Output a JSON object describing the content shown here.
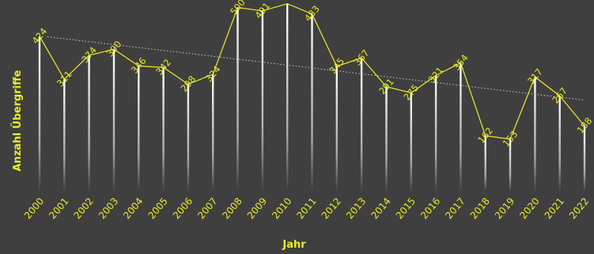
{
  "chart_data": {
    "type": "line",
    "xlabel": "Jahr",
    "ylabel": "Anzahl Übergriffe",
    "categories": [
      "2000",
      "2001",
      "2002",
      "2003",
      "2004",
      "2005",
      "2006",
      "2007",
      "2008",
      "2009",
      "2010",
      "2011",
      "2012",
      "2013",
      "2014",
      "2015",
      "2016",
      "2017",
      "2018",
      "2019",
      "2020",
      "2021",
      "2022"
    ],
    "series": [
      {
        "values": [
          424,
          311,
          374,
          390,
          346,
          342,
          298,
          324,
          500,
          491,
          510,
          483,
          345,
          367,
          291,
          275,
          321,
          354,
          162,
          153,
          317,
          267,
          188
        ],
        "labels": [
          "424",
          "311",
          "374",
          "390",
          "346",
          "342",
          "298",
          "324",
          "500",
          "491",
          "",
          "483",
          "345",
          "367",
          "291",
          "275",
          "321",
          "354",
          "162",
          "153",
          "317",
          "267",
          "188"
        ]
      }
    ],
    "trendline": {
      "style": "dotted",
      "color": "#cfcfcf"
    },
    "ylim": [
      0,
      520
    ],
    "grid": false,
    "colors": {
      "line": "#ecec2a",
      "text": "#ecec2a",
      "bars": "#ffffff",
      "background": "#3f3f3f"
    }
  }
}
